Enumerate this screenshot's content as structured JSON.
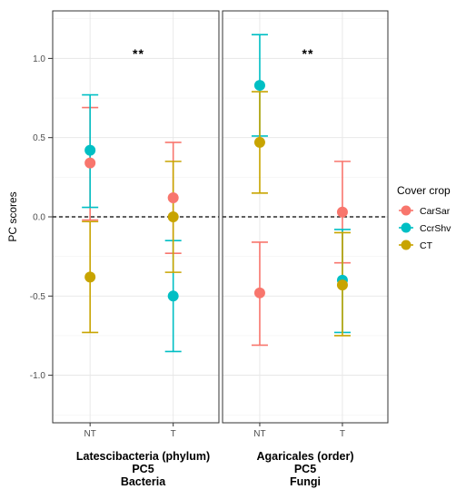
{
  "chart_data": {
    "type": "scatter",
    "ylabel": "PC scores",
    "ylim": [
      -1.3,
      1.3
    ],
    "y_ticks": [
      -1.0,
      -0.5,
      0.0,
      0.5,
      1.0
    ],
    "y_tick_labels": [
      "-1.0",
      "-0.5",
      "0.0",
      "0.5",
      "1.0"
    ],
    "categories": [
      "NT",
      "T"
    ],
    "reference_line": {
      "y": 0,
      "style": "dashed"
    },
    "grid": true,
    "legend": {
      "title": "Cover crop",
      "placement": "right",
      "entries": [
        {
          "name": "CarSar",
          "color": "#F8766D"
        },
        {
          "name": "CcrShv",
          "color": "#00BFC4"
        },
        {
          "name": "CT",
          "color": "#C8A400"
        }
      ]
    },
    "panels": [
      {
        "caption": [
          "Latescibacteria (phylum)",
          "PC5",
          "Bacteria"
        ],
        "significance": "**",
        "series": [
          {
            "name": "CarSar",
            "color": "#F8766D",
            "points": [
              {
                "x": "NT",
                "y": 0.34,
                "lower": -0.02,
                "upper": 0.69
              },
              {
                "x": "T",
                "y": 0.12,
                "lower": -0.23,
                "upper": 0.47
              }
            ]
          },
          {
            "name": "CcrShv",
            "color": "#00BFC4",
            "points": [
              {
                "x": "NT",
                "y": 0.42,
                "lower": 0.06,
                "upper": 0.77
              },
              {
                "x": "T",
                "y": -0.5,
                "lower": -0.85,
                "upper": -0.15
              }
            ]
          },
          {
            "name": "CT",
            "color": "#C8A400",
            "points": [
              {
                "x": "NT",
                "y": -0.38,
                "lower": -0.73,
                "upper": -0.03
              },
              {
                "x": "T",
                "y": 0.0,
                "lower": -0.35,
                "upper": 0.35
              }
            ]
          }
        ]
      },
      {
        "caption": [
          "Agaricales (order)",
          "PC5",
          "Fungi"
        ],
        "significance": "**",
        "series": [
          {
            "name": "CarSar",
            "color": "#F8766D",
            "points": [
              {
                "x": "NT",
                "y": -0.48,
                "lower": -0.81,
                "upper": -0.16
              },
              {
                "x": "T",
                "y": 0.03,
                "lower": -0.29,
                "upper": 0.35
              }
            ]
          },
          {
            "name": "CcrShv",
            "color": "#00BFC4",
            "points": [
              {
                "x": "NT",
                "y": 0.83,
                "lower": 0.51,
                "upper": 1.15
              },
              {
                "x": "T",
                "y": -0.4,
                "lower": -0.73,
                "upper": -0.08
              }
            ]
          },
          {
            "name": "CT",
            "color": "#C8A400",
            "points": [
              {
                "x": "NT",
                "y": 0.47,
                "lower": 0.15,
                "upper": 0.79
              },
              {
                "x": "T",
                "y": -0.43,
                "lower": -0.75,
                "upper": -0.1
              }
            ]
          }
        ]
      }
    ]
  }
}
